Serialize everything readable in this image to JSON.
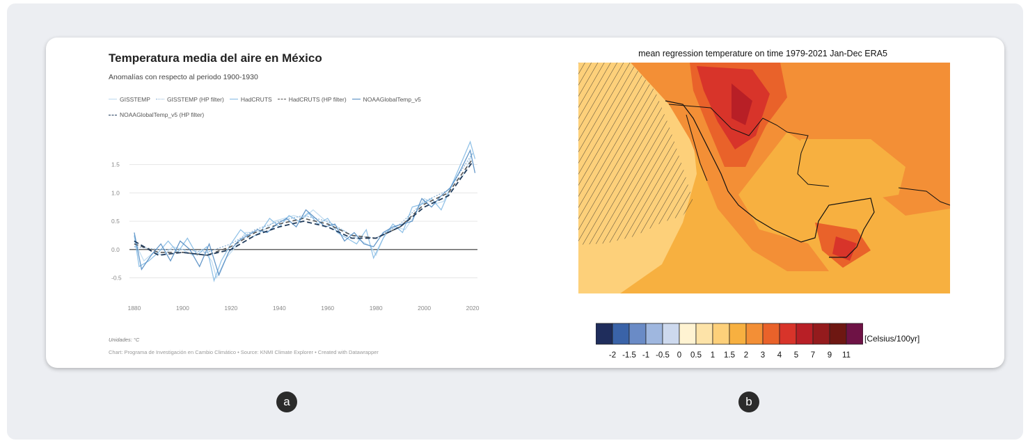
{
  "panel_a": {
    "badge": "a",
    "title": "Temperatura media del aire en México",
    "subtitle": "Anomalías con respecto al periodo 1900-1930",
    "units": "Unidades: °C",
    "source": "Chart: Programa de Investigación en Cambio Climático • Source: KNMI Climate Explorer • Created with Datawrapper"
  },
  "panel_b": {
    "badge": "b",
    "title": "mean regression temperature on time 1979-2021 Jan-Dec ERA5",
    "unit": "[Celsius/100yr]",
    "colorbar_colors": [
      "#1f2d5c",
      "#3a63a8",
      "#6a8bc6",
      "#9fb7df",
      "#cdd9ee",
      "#fff3d2",
      "#fde3a8",
      "#fdd07a",
      "#f7b040",
      "#f38f36",
      "#e9622a",
      "#d8342a",
      "#b81f26",
      "#941b1d",
      "#6e1712",
      "#6e1245"
    ],
    "colorbar_labels": [
      "-2",
      "-1.5",
      "-1",
      "-0.5",
      "0",
      "0.5",
      "1",
      "1.5",
      "2",
      "3",
      "4",
      "5",
      "7",
      "9",
      "11"
    ]
  },
  "chart_data": [
    {
      "type": "line",
      "title": "Temperatura media del aire en México",
      "subtitle": "Anomalías con respecto al periodo 1900-1930",
      "xlabel": "",
      "ylabel": "",
      "xlim": [
        1878,
        2022
      ],
      "ylim": [
        -0.8,
        1.9
      ],
      "x_ticks": [
        "1880",
        "1900",
        "1920",
        "1940",
        "1960",
        "1980",
        "2000",
        "2020"
      ],
      "y_ticks": [
        "1.5",
        "1.0",
        "0.5",
        "0.0",
        "-0.5"
      ],
      "grid": true,
      "legend_position": "top",
      "series": [
        {
          "name": "GISSTEMP",
          "style": "solid-light",
          "color": "#bcd9ee",
          "x": [
            1880,
            1884,
            1888,
            1892,
            1896,
            1900,
            1904,
            1908,
            1912,
            1914,
            1918,
            1922,
            1926,
            1930,
            1934,
            1938,
            1942,
            1946,
            1950,
            1954,
            1958,
            1962,
            1966,
            1970,
            1974,
            1978,
            1980,
            1984,
            1988,
            1992,
            1996,
            2000,
            2004,
            2008,
            2012,
            2016,
            2020
          ],
          "y": [
            0.15,
            -0.2,
            -0.05,
            -0.1,
            0.05,
            0.0,
            -0.1,
            0.0,
            -0.2,
            -0.5,
            -0.15,
            0.05,
            0.3,
            0.3,
            0.35,
            0.5,
            0.55,
            0.6,
            0.55,
            0.7,
            0.55,
            0.4,
            0.35,
            0.25,
            0.15,
            0.05,
            -0.1,
            0.3,
            0.4,
            0.35,
            0.6,
            0.9,
            0.8,
            0.85,
            1.2,
            1.3,
            1.7
          ]
        },
        {
          "name": "GISSTEMP (HP filter)",
          "style": "dotted",
          "color": "#8fb4d6",
          "x": [
            1880,
            1890,
            1900,
            1910,
            1920,
            1930,
            1940,
            1950,
            1960,
            1970,
            1980,
            1990,
            2000,
            2010,
            2020
          ],
          "y": [
            0.05,
            0.0,
            0.0,
            -0.05,
            0.1,
            0.35,
            0.5,
            0.6,
            0.5,
            0.25,
            0.2,
            0.45,
            0.85,
            1.05,
            1.7
          ]
        },
        {
          "name": "HadCRUTS",
          "style": "solid",
          "color": "#7fb7e3",
          "x": [
            1880,
            1882,
            1886,
            1890,
            1894,
            1898,
            1902,
            1906,
            1910,
            1913,
            1916,
            1920,
            1924,
            1928,
            1932,
            1936,
            1940,
            1944,
            1948,
            1952,
            1956,
            1960,
            1964,
            1968,
            1972,
            1976,
            1979,
            1983,
            1987,
            1991,
            1995,
            1999,
            2003,
            2007,
            2011,
            2015,
            2019,
            2021
          ],
          "y": [
            0.25,
            -0.3,
            -0.2,
            -0.05,
            0.15,
            -0.05,
            0.2,
            -0.1,
            0.05,
            -0.55,
            -0.2,
            0.1,
            0.35,
            0.2,
            0.3,
            0.55,
            0.4,
            0.6,
            0.5,
            0.65,
            0.45,
            0.55,
            0.3,
            0.2,
            0.1,
            0.35,
            -0.15,
            0.2,
            0.45,
            0.3,
            0.75,
            0.8,
            0.9,
            0.7,
            1.1,
            1.5,
            1.9,
            1.6
          ]
        },
        {
          "name": "HadCRUTS (HP filter)",
          "style": "dashed",
          "color": "#555555",
          "x": [
            1880,
            1890,
            1900,
            1910,
            1920,
            1930,
            1940,
            1950,
            1960,
            1970,
            1980,
            1990,
            2000,
            2010,
            2020
          ],
          "y": [
            0.1,
            -0.05,
            -0.05,
            -0.1,
            0.05,
            0.3,
            0.45,
            0.55,
            0.45,
            0.25,
            0.2,
            0.4,
            0.8,
            1.0,
            1.6
          ]
        },
        {
          "name": "NOAAGlobalTemp_v5",
          "style": "solid",
          "color": "#4a86bf",
          "x": [
            1880,
            1883,
            1887,
            1891,
            1895,
            1899,
            1903,
            1907,
            1911,
            1915,
            1919,
            1923,
            1927,
            1931,
            1935,
            1939,
            1943,
            1947,
            1951,
            1955,
            1959,
            1963,
            1967,
            1971,
            1975,
            1979,
            1983,
            1987,
            1991,
            1995,
            1999,
            2003,
            2007,
            2011,
            2015,
            2019,
            2021
          ],
          "y": [
            0.3,
            -0.35,
            -0.1,
            0.1,
            -0.2,
            0.15,
            0.0,
            -0.3,
            0.1,
            -0.45,
            -0.05,
            0.15,
            0.25,
            0.35,
            0.3,
            0.45,
            0.55,
            0.4,
            0.7,
            0.55,
            0.4,
            0.45,
            0.15,
            0.3,
            0.1,
            0.05,
            0.3,
            0.4,
            0.45,
            0.5,
            0.9,
            0.75,
            0.95,
            1.1,
            1.4,
            1.75,
            1.35
          ]
        },
        {
          "name": "NOAAGlobalTemp_v5 (HP filter)",
          "style": "dashed-dark",
          "color": "#1f3a5a",
          "x": [
            1880,
            1890,
            1900,
            1910,
            1920,
            1930,
            1940,
            1950,
            1960,
            1970,
            1980,
            1990,
            2000,
            2010,
            2020
          ],
          "y": [
            0.15,
            -0.1,
            -0.05,
            -0.1,
            0.0,
            0.25,
            0.4,
            0.5,
            0.4,
            0.2,
            0.2,
            0.4,
            0.75,
            0.95,
            1.55
          ]
        }
      ]
    },
    {
      "type": "heatmap",
      "title": "mean regression temperature on time 1979-2021 Jan-Dec ERA5",
      "colorbar_unit": "[Celsius/100yr]",
      "colorbar_levels": [
        "-2",
        "-1.5",
        "-1",
        "-0.5",
        "0",
        "0.5",
        "1",
        "1.5",
        "2",
        "3",
        "4",
        "5",
        "7",
        "9",
        "11"
      ]
    }
  ]
}
